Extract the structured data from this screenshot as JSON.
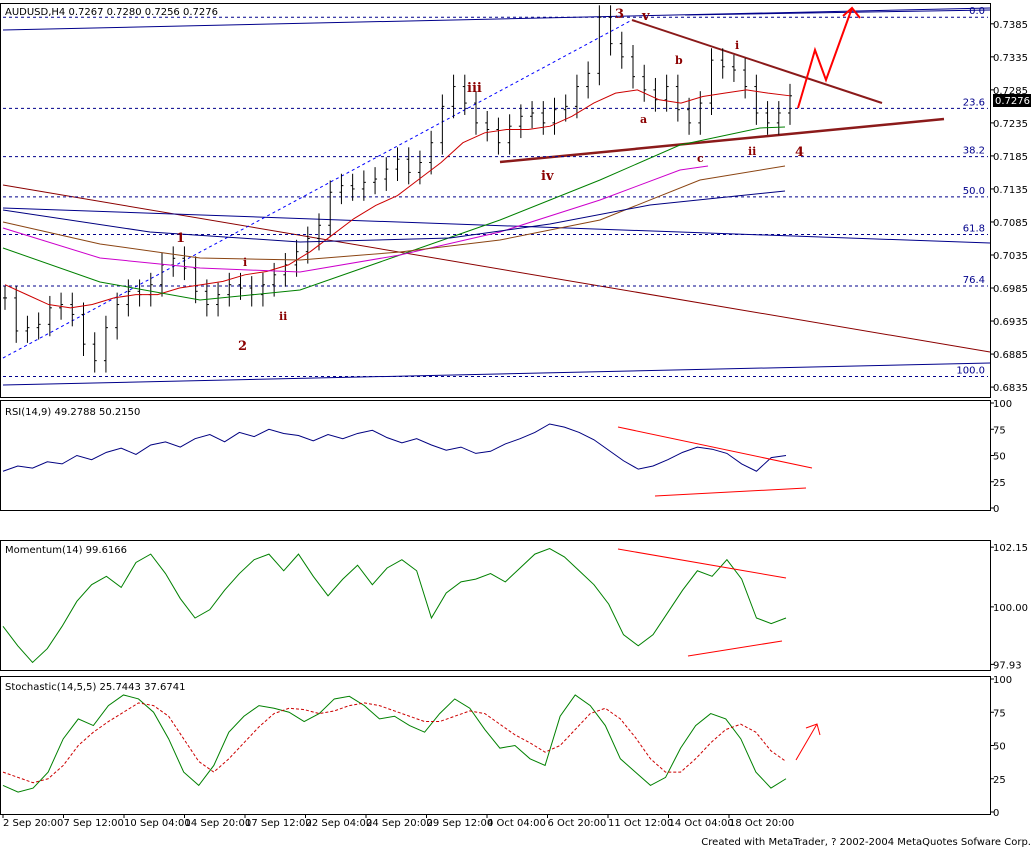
{
  "main": {
    "header": "AUDUSD,H4  0.7267 0.7280 0.7256 0.7276",
    "price_tag": "0.7276",
    "y_ticks": [
      "0.7385",
      "0.7335",
      "0.7285",
      "0.7235",
      "0.7185",
      "0.7135",
      "0.7085",
      "0.7035",
      "0.6985",
      "0.6935",
      "0.6885",
      "0.6835"
    ],
    "fib_levels": [
      "0.0",
      "23.6",
      "38.2",
      "50.0",
      "61.8",
      "76.4",
      "100.0"
    ],
    "wave_labels": [
      "3",
      "v",
      "i",
      "b",
      "a",
      "c",
      "ii",
      "4",
      "iii",
      "iv",
      "1",
      "i",
      "ii",
      "2"
    ]
  },
  "rsi": {
    "header": "RSI(14,9)  49.2788  50.2150",
    "y_ticks": [
      "100",
      "75",
      "50",
      "25",
      "0"
    ]
  },
  "momentum": {
    "header": "Momentum(14)  99.6166",
    "y_ticks": [
      "102.15",
      "100.00",
      "97.93"
    ]
  },
  "stochastic": {
    "header": "Stochastic(14,5,5)  25.7443  37.6741",
    "y_ticks": [
      "100",
      "75",
      "50",
      "25",
      "0"
    ]
  },
  "x_labels": [
    "2 Sep 20:00",
    "7 Sep 12:00",
    "10 Sep 04:00",
    "14 Sep 20:00",
    "17 Sep 12:00",
    "22 Sep 04:00",
    "24 Sep 20:00",
    "29 Sep 12:00",
    "4 Oct 04:00",
    "6 Oct 20:00",
    "11 Oct 12:00",
    "14 Oct 04:00",
    "18 Oct 20:00"
  ],
  "footer": "Created with MetaTrader, ? 2002-2004 MetaQuotes Sofware Corp.",
  "chart_data": [
    {
      "type": "line",
      "title": "AUDUSD,H4",
      "ylim": [
        0.682,
        0.7415
      ],
      "y_tick_values": [
        0.7385,
        0.7335,
        0.7285,
        0.7235,
        0.7185,
        0.7135,
        0.7085,
        0.7035,
        0.6985,
        0.6935,
        0.6885,
        0.6835
      ],
      "fib_values": [
        0.7395,
        0.7257,
        0.7184,
        0.7123,
        0.7066,
        0.6988,
        0.6851
      ],
      "x_count": 200,
      "series": [
        {
          "color": "#000000",
          "values": [
            0.697,
            0.692,
            0.6925,
            0.693,
            0.6955,
            0.696,
            0.6945,
            0.69,
            0.6875,
            0.6925,
            0.696,
            0.698,
            0.6975,
            0.699,
            0.702,
            0.703,
            0.7015,
            0.698,
            0.696,
            0.6975,
            0.699,
            0.6985,
            0.6975,
            0.699,
            0.7005,
            0.702,
            0.704,
            0.706,
            0.708,
            0.713,
            0.714,
            0.7135,
            0.7145,
            0.715,
            0.7165,
            0.718,
            0.716,
            0.7175,
            0.7205,
            0.726,
            0.729,
            0.7265,
            0.7235,
            0.7225,
            0.7205,
            0.723,
            0.7245,
            0.725,
            0.7235,
            0.7255,
            0.726,
            0.729,
            0.731,
            0.7395,
            0.7355,
            0.7335,
            0.7305,
            0.7285,
            0.727,
            0.729,
            0.7255,
            0.7235,
            0.7265,
            0.733,
            0.732,
            0.7315,
            0.729,
            0.725,
            0.7235,
            0.725,
            0.7276
          ]
        },
        {
          "color": "#cc0000",
          "values": [
            0.699,
            0.6975,
            0.696,
            0.6955,
            0.696,
            0.697,
            0.6975,
            0.6975,
            0.6985,
            0.699,
            0.6995,
            0.7005,
            0.701,
            0.702,
            0.704,
            0.7065,
            0.709,
            0.711,
            0.7125,
            0.715,
            0.7175,
            0.7205,
            0.722,
            0.7225,
            0.7225,
            0.723,
            0.7245,
            0.7265,
            0.728,
            0.7285,
            0.727,
            0.7265,
            0.7275,
            0.728,
            0.7285,
            0.728,
            0.7276
          ]
        }
      ]
    },
    {
      "type": "line",
      "title": "RSI(14,9)",
      "ylim": [
        0,
        100
      ],
      "y_tick_values": [
        100,
        75,
        50,
        25,
        0
      ],
      "series": [
        {
          "name": "RSI",
          "color": "#000080",
          "values": [
            35,
            40,
            38,
            44,
            42,
            50,
            46,
            53,
            57,
            51,
            60,
            63,
            58,
            66,
            70,
            63,
            72,
            68,
            75,
            71,
            69,
            64,
            70,
            66,
            71,
            74,
            67,
            62,
            66,
            60,
            55,
            58,
            52,
            54,
            61,
            66,
            72,
            80,
            77,
            72,
            65,
            55,
            45,
            37,
            40,
            46,
            53,
            58,
            56,
            52,
            42,
            35,
            48,
            50
          ]
        }
      ]
    },
    {
      "type": "line",
      "title": "Momentum(14)",
      "ylim": [
        97.8,
        102.3
      ],
      "y_tick_values": [
        102.15,
        100.0,
        97.93
      ],
      "series": [
        {
          "name": "Momentum",
          "color": "#008000",
          "values": [
            99.3,
            98.6,
            98.0,
            98.5,
            99.3,
            100.2,
            100.8,
            101.1,
            100.7,
            101.6,
            101.9,
            101.2,
            100.3,
            99.6,
            99.9,
            100.6,
            101.2,
            101.7,
            101.9,
            101.3,
            101.9,
            101.1,
            100.4,
            101.0,
            101.5,
            100.8,
            101.4,
            101.7,
            101.3,
            99.6,
            100.5,
            100.9,
            101.0,
            101.2,
            100.9,
            101.4,
            101.9,
            102.1,
            101.8,
            101.3,
            100.8,
            100.1,
            99.0,
            98.6,
            99.0,
            99.8,
            100.6,
            101.3,
            101.1,
            101.7,
            101.0,
            99.6,
            99.4,
            99.6
          ]
        }
      ]
    },
    {
      "type": "line",
      "title": "Stochastic(14,5,5)",
      "ylim": [
        0,
        100
      ],
      "y_tick_values": [
        100,
        75,
        50,
        25,
        0
      ],
      "series": [
        {
          "name": "%K",
          "color": "#008000",
          "values": [
            20,
            15,
            18,
            30,
            55,
            70,
            65,
            80,
            88,
            85,
            75,
            55,
            30,
            20,
            35,
            60,
            72,
            80,
            78,
            75,
            68,
            74,
            85,
            87,
            80,
            70,
            72,
            65,
            60,
            74,
            85,
            78,
            62,
            48,
            50,
            40,
            35,
            72,
            88,
            80,
            65,
            40,
            30,
            20,
            26,
            48,
            65,
            74,
            70,
            55,
            30,
            18,
            25
          ]
        },
        {
          "name": "%D",
          "color": "#cc0000",
          "values": [
            30,
            26,
            22,
            25,
            35,
            50,
            60,
            68,
            75,
            82,
            80,
            72,
            55,
            38,
            30,
            40,
            52,
            64,
            74,
            78,
            77,
            74,
            76,
            80,
            82,
            80,
            76,
            72,
            68,
            68,
            72,
            76,
            74,
            66,
            58,
            52,
            45,
            50,
            62,
            74,
            78,
            70,
            56,
            40,
            30,
            30,
            40,
            52,
            62,
            66,
            60,
            46,
            38
          ]
        }
      ]
    }
  ]
}
